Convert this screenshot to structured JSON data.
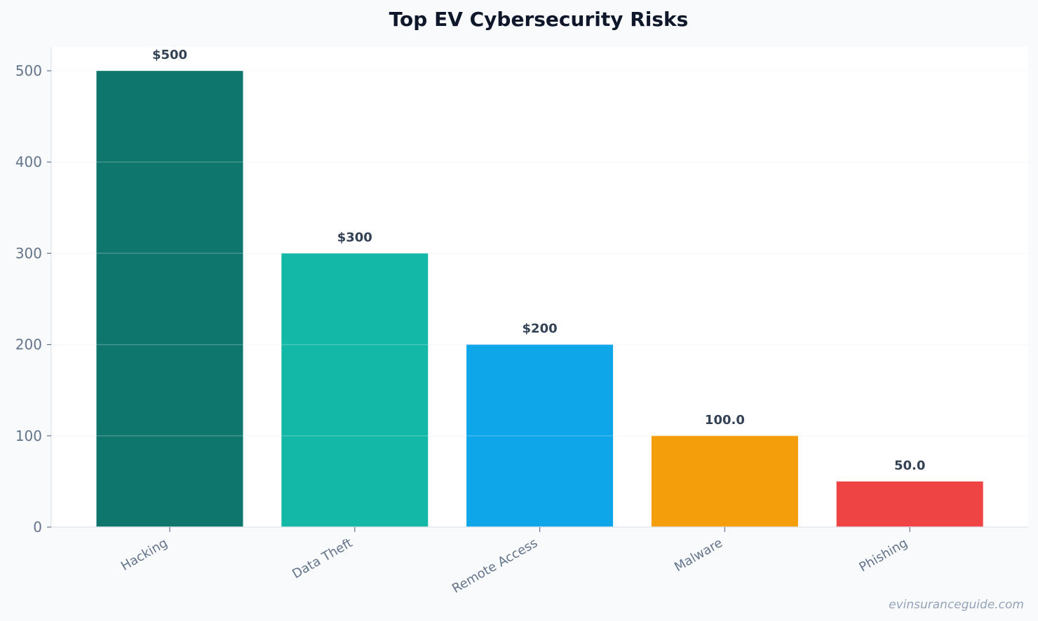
{
  "chart_data": {
    "type": "bar",
    "title": "Top EV Cybersecurity Risks",
    "xlabel": "",
    "ylabel": "",
    "categories": [
      "Hacking",
      "Data Theft",
      "Remote Access",
      "Malware",
      "Phishing"
    ],
    "values": [
      500,
      300,
      200,
      100,
      50
    ],
    "value_labels": [
      "$500",
      "$300",
      "$200",
      "100.0",
      "50.0"
    ],
    "colors": [
      "#0f766e",
      "#14b8a6",
      "#0ea5e9",
      "#f59e0b",
      "#ef4444"
    ],
    "ylim": [
      0,
      525
    ],
    "yticks": [
      0,
      100,
      200,
      300,
      400,
      500
    ],
    "grid": true
  },
  "watermark": "evinsuranceguide.com",
  "colors": {
    "background": "#f8fafc",
    "plot_background": "#ffffff",
    "title": "#0f172a",
    "tick_label": "#64748b",
    "value_label": "#334155",
    "axis": "#e2e8f0",
    "grid": "#f1f5f9",
    "watermark": "#94a3b8"
  }
}
